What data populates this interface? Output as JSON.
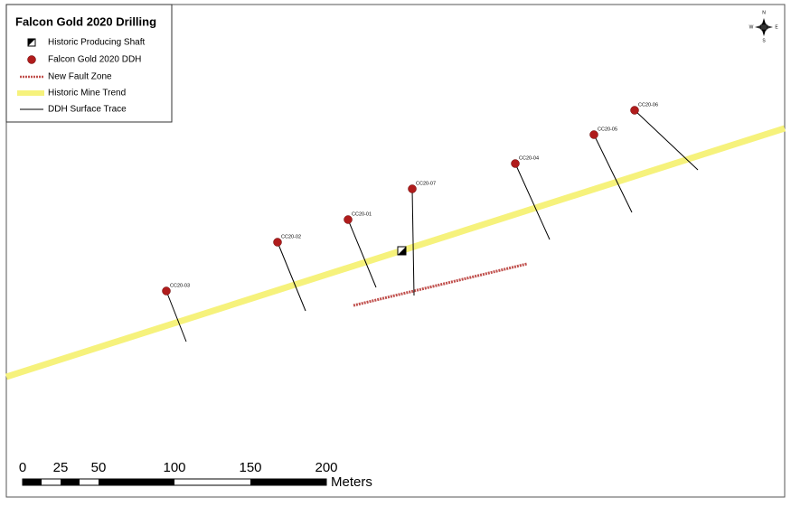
{
  "map": {
    "title": "Falcon Gold 2020 Drilling",
    "legend": [
      "Historic Producing Shaft",
      "Falcon Gold 2020 DDH",
      "New Fault Zone",
      "Historic Mine Trend",
      "DDH Surface Trace"
    ],
    "drill_holes": [
      "CC20-03",
      "CC20-02",
      "CC20-01",
      "CC20-07",
      "CC20-04",
      "CC20-05",
      "CC20-06"
    ],
    "compass": {
      "n": "N",
      "s": "S",
      "e": "E",
      "w": "W"
    },
    "scale": {
      "ticks": [
        0,
        25,
        50,
        100,
        150,
        200
      ],
      "unit": "Meters"
    }
  }
}
